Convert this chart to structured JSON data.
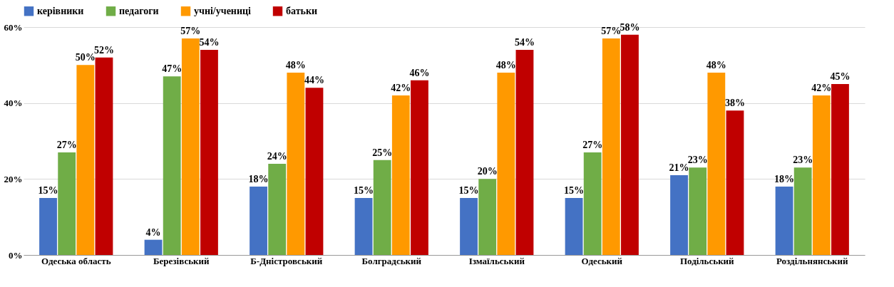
{
  "chart_data": {
    "type": "bar",
    "categories": [
      "Одеська область",
      "Березівський",
      "Б-Дністровський",
      "Болградський",
      "Ізмаїльський",
      "Одеський",
      "Подільський",
      "Роздільнянський"
    ],
    "series": [
      {
        "name": "керівники",
        "color": "#4472c4",
        "values": [
          15,
          4,
          18,
          15,
          15,
          15,
          21,
          18
        ],
        "value_labels": [
          "15%",
          "4%",
          "18%",
          "15%",
          "15%",
          "15%",
          "21%",
          "18%"
        ]
      },
      {
        "name": "педагоги",
        "color": "#70ad47",
        "values": [
          27,
          47,
          24,
          25,
          20,
          27,
          23,
          23
        ],
        "value_labels": [
          "27%",
          "47%",
          "24%",
          "25%",
          "20%",
          "27%",
          "23%",
          "23%"
        ]
      },
      {
        "name": "учні/учениці",
        "color": "#ff9900",
        "values": [
          50,
          57,
          48,
          42,
          48,
          57,
          48,
          42
        ],
        "value_labels": [
          "50%",
          "57%",
          "48%",
          "42%",
          "48%",
          "57%",
          "48%",
          "42%"
        ]
      },
      {
        "name": "батьки",
        "color": "#c00000",
        "values": [
          52,
          54,
          44,
          46,
          54,
          58,
          38,
          45
        ],
        "value_labels": [
          "52%",
          "54%",
          "44%",
          "46%",
          "54%",
          "58%",
          "38%",
          "45%"
        ]
      }
    ],
    "ylim": [
      0,
      60
    ],
    "yticks": [
      {
        "value": 0,
        "label": "0%"
      },
      {
        "value": 20,
        "label": "20%"
      },
      {
        "value": 40,
        "label": "40%"
      },
      {
        "value": 60,
        "label": "60%"
      }
    ],
    "grid": "y",
    "legend": "top"
  }
}
